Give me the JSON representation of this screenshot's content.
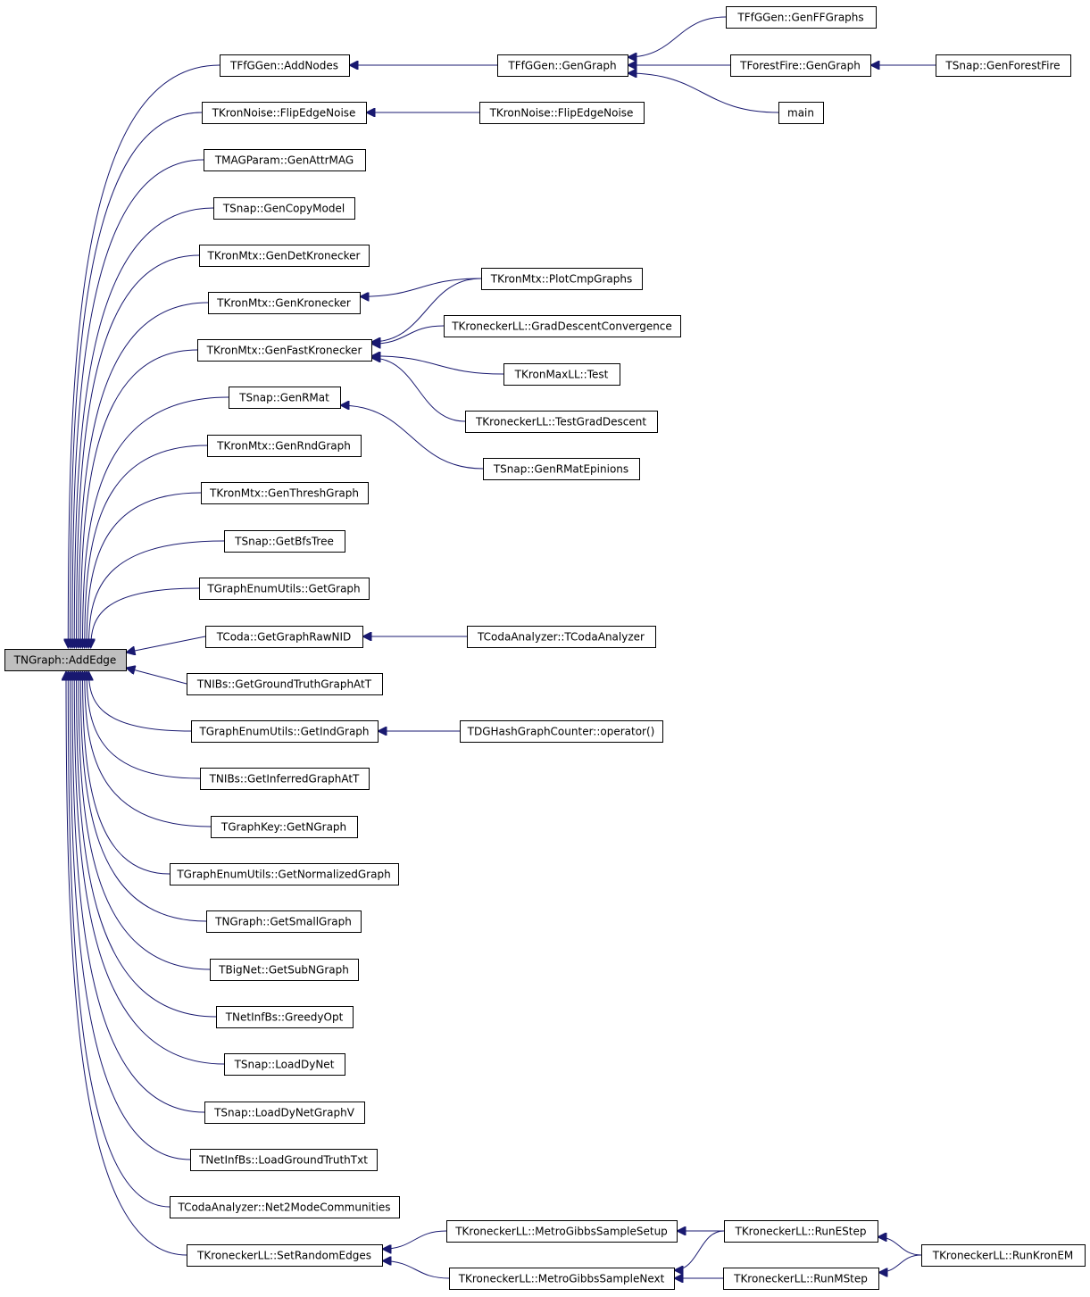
{
  "nodes": [
    {
      "label": "TNGraph::AddEdge"
    },
    {
      "label": "TFfGGen::AddNodes"
    },
    {
      "label": "TKronNoise::FlipEdgeNoise"
    },
    {
      "label": "TMAGParam::GenAttrMAG"
    },
    {
      "label": "TSnap::GenCopyModel"
    },
    {
      "label": "TKronMtx::GenDetKronecker"
    },
    {
      "label": "TKronMtx::GenKronecker"
    },
    {
      "label": "TKronMtx::GenFastKronecker"
    },
    {
      "label": "TSnap::GenRMat"
    },
    {
      "label": "TKronMtx::GenRndGraph"
    },
    {
      "label": "TKronMtx::GenThreshGraph"
    },
    {
      "label": "TSnap::GetBfsTree"
    },
    {
      "label": "TGraphEnumUtils::GetGraph"
    },
    {
      "label": "TCoda::GetGraphRawNID"
    },
    {
      "label": "TNIBs::GetGroundTruthGraphAtT"
    },
    {
      "label": "TGraphEnumUtils::GetIndGraph"
    },
    {
      "label": "TNIBs::GetInferredGraphAtT"
    },
    {
      "label": "TGraphKey::GetNGraph"
    },
    {
      "label": "TGraphEnumUtils::GetNormalizedGraph"
    },
    {
      "label": "TNGraph::GetSmallGraph"
    },
    {
      "label": "TBigNet::GetSubNGraph"
    },
    {
      "label": "TNetInfBs::GreedyOpt"
    },
    {
      "label": "TSnap::LoadDyNet"
    },
    {
      "label": "TSnap::LoadDyNetGraphV"
    },
    {
      "label": "TNetInfBs::LoadGroundTruthTxt"
    },
    {
      "label": "TCodaAnalyzer::Net2ModeCommunities"
    },
    {
      "label": "TKroneckerLL::SetRandomEdges"
    },
    {
      "label": "TFfGGen::GenGraph"
    },
    {
      "label": "TKronNoise::FlipEdgeNoise"
    },
    {
      "label": "TKronMtx::PlotCmpGraphs"
    },
    {
      "label": "TKroneckerLL::GradDescentConvergence"
    },
    {
      "label": "TKronMaxLL::Test"
    },
    {
      "label": "TKroneckerLL::TestGradDescent"
    },
    {
      "label": "TSnap::GenRMatEpinions"
    },
    {
      "label": "TCodaAnalyzer::TCodaAnalyzer"
    },
    {
      "label": "TDGHashGraphCounter::operator()"
    },
    {
      "label": "TKroneckerLL::MetroGibbsSampleSetup"
    },
    {
      "label": "TKroneckerLL::MetroGibbsSampleNext"
    },
    {
      "label": "TFfGGen::GenFFGraphs"
    },
    {
      "label": "TForestFire::GenGraph"
    },
    {
      "label": "main"
    },
    {
      "label": "TKroneckerLL::RunEStep"
    },
    {
      "label": "TKroneckerLL::RunMStep"
    },
    {
      "label": "TSnap::GenForestFire"
    },
    {
      "label": "TKroneckerLL::RunKronEM"
    }
  ]
}
